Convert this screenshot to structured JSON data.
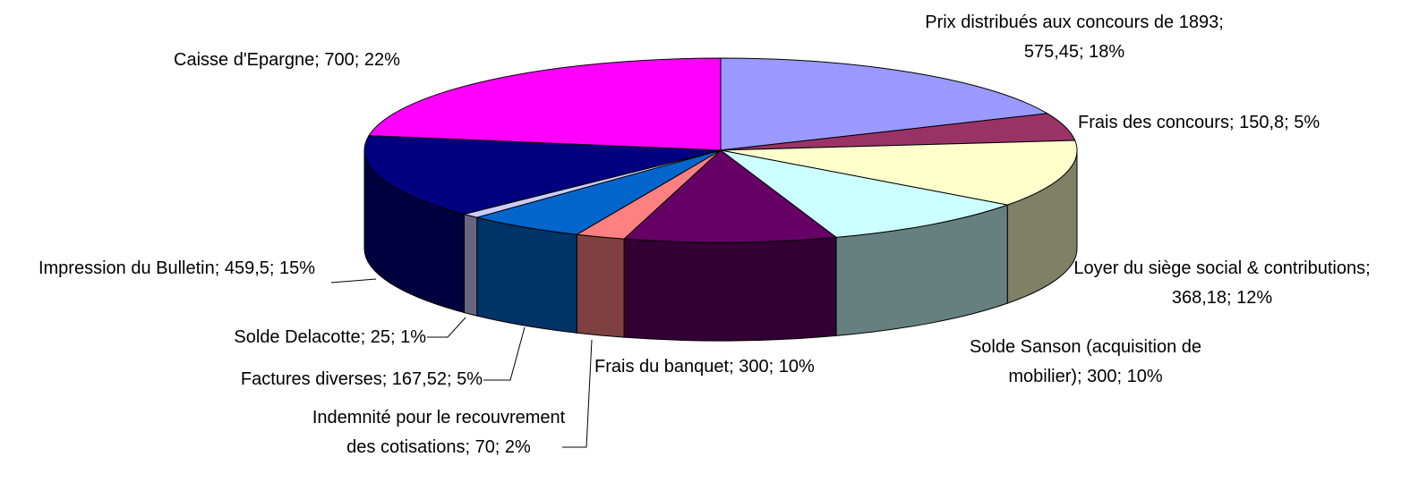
{
  "chart_data": {
    "type": "pie3d",
    "labels": [
      "Prix distribués aux concours de 1893; 575,45; 18%",
      "Frais des concours; 150,8; 5%",
      "Loyer du siège social & contributions; 368,18; 12%",
      "Solde Sanson (acquisition de mobilier); 300; 10%",
      "Frais du banquet; 300; 10%",
      "Indemnité pour le recouvrement des cotisations; 70; 2%",
      "Factures diverses; 167,52; 5%",
      "Solde Delacotte; 25; 1%",
      "Impression du Bulletin; 459,5; 15%",
      "Caisse d'Epargne; 700; 22%"
    ],
    "values": [
      575.45,
      150.8,
      368.18,
      300,
      300,
      70,
      167.52,
      25,
      459.5,
      700
    ],
    "colors": [
      "#9999ff",
      "#993366",
      "#ffffcc",
      "#ccffff",
      "#660066",
      "#ff8080",
      "#0066cc",
      "#ccccff",
      "#000080",
      "#ff00ff"
    ]
  }
}
